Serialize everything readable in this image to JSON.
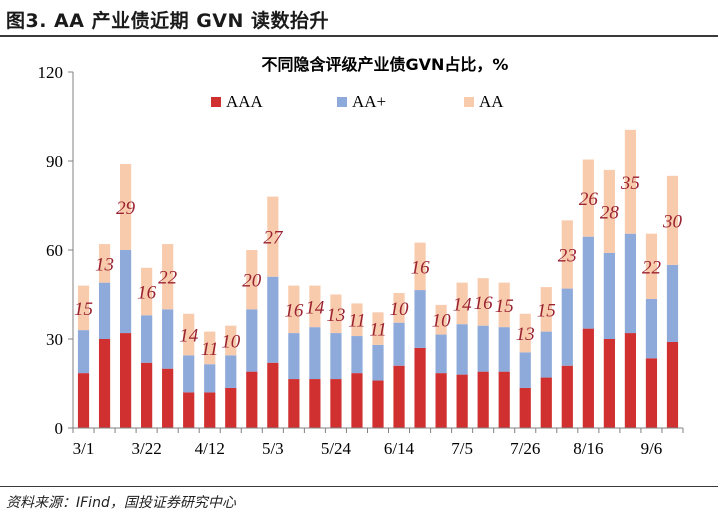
{
  "figure": {
    "title": "图3. AA 产业债近期 GVN 读数抬升",
    "source": "资料来源：IFind，国投证券研究中心"
  },
  "colors": {
    "aaa": "#d0302f",
    "aa_plus": "#8eaadb",
    "aa": "#f8cbad",
    "label": "#9b2230",
    "axis": "#808080"
  },
  "chart_data": {
    "type": "bar",
    "stacked": true,
    "title": "不同隐含评级产业债GVN占比，%",
    "xlabel": "",
    "ylabel": "",
    "ylim": [
      0,
      120
    ],
    "yticks": [
      0,
      30,
      60,
      90,
      120
    ],
    "legend": {
      "position": "top",
      "entries": [
        "AAA",
        "AA+",
        "AA"
      ]
    },
    "x_tick_labels": [
      "3/1",
      "3/22",
      "4/12",
      "5/3",
      "5/24",
      "6/14",
      "7/5",
      "7/26",
      "8/16",
      "9/6"
    ],
    "categories": [
      "3/1",
      "3/8",
      "3/15",
      "3/22",
      "3/29",
      "4/5",
      "4/12",
      "4/19",
      "4/26",
      "5/3",
      "5/10",
      "5/17",
      "5/24",
      "5/31",
      "6/7",
      "6/14",
      "6/21",
      "6/28",
      "7/5",
      "7/12",
      "7/19",
      "7/26",
      "8/2",
      "8/9",
      "8/16",
      "8/23",
      "8/30",
      "9/6",
      "9/13"
    ],
    "series": [
      {
        "name": "AAA",
        "values": [
          18.5,
          30,
          32,
          22,
          20,
          12,
          12,
          13.5,
          19,
          22,
          16.5,
          16.5,
          16.5,
          18.5,
          16,
          21,
          27,
          18.5,
          18,
          19,
          19,
          13.5,
          17,
          21,
          33.5,
          30,
          32,
          23.5,
          29
        ]
      },
      {
        "name": "AA+",
        "values": [
          14.5,
          19,
          28,
          16,
          20,
          12.5,
          9.5,
          11,
          21,
          29,
          15.5,
          17.5,
          15.5,
          12.5,
          12,
          14.5,
          19.5,
          13,
          17,
          15.5,
          15,
          12,
          15.5,
          26,
          31,
          29,
          33.5,
          20,
          26
        ]
      },
      {
        "name": "AA",
        "values": [
          15,
          13,
          29,
          16,
          22,
          14,
          11,
          10,
          20,
          27,
          16,
          14,
          13,
          11,
          11,
          10,
          16,
          10,
          14,
          16,
          15,
          13,
          15,
          23,
          26,
          28,
          35,
          22,
          30
        ]
      }
    ],
    "data_labels": [
      "15",
      "13",
      "29",
      "16",
      "22",
      "14",
      "11",
      "10",
      "20",
      "27",
      "16",
      "14",
      "13",
      "11",
      "11",
      "10",
      "16",
      "10",
      "14",
      "16",
      "15",
      "13",
      "15",
      "23",
      "26",
      "28",
      "35",
      "22",
      "30"
    ]
  }
}
